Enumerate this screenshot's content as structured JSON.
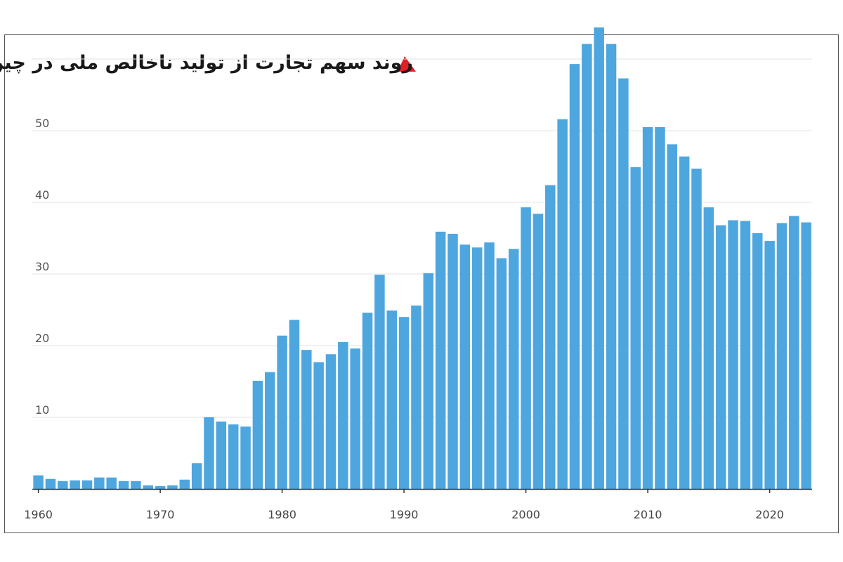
{
  "chart_data": {
    "type": "bar",
    "title": "روند سهم تجارت از تولید ناخالص ملی در چین",
    "xlabel": "",
    "ylabel": "",
    "ylim": [
      0,
      60
    ],
    "yticks": [
      10,
      20,
      30,
      40,
      50
    ],
    "xticks": [
      1960,
      1970,
      1980,
      1990,
      2000,
      2010,
      2020
    ],
    "grid": true,
    "bar_color": "#4ea6df",
    "marker_color": "#e31e24",
    "categories": [
      1960,
      1961,
      1962,
      1963,
      1964,
      1965,
      1966,
      1967,
      1968,
      1969,
      1970,
      1971,
      1972,
      1973,
      1974,
      1975,
      1976,
      1977,
      1978,
      1979,
      1980,
      1981,
      1982,
      1983,
      1984,
      1985,
      1986,
      1987,
      1988,
      1989,
      1990,
      1991,
      1992,
      1993,
      1994,
      1995,
      1996,
      1997,
      1998,
      1999,
      2000,
      2001,
      2002,
      2003,
      2004,
      2005,
      2006,
      2007,
      2008,
      2009,
      2010,
      2011,
      2012,
      2013,
      2014,
      2015,
      2016,
      2017,
      2018,
      2019,
      2020,
      2021,
      2022,
      2023
    ],
    "values": [
      1.9,
      1.4,
      1.1,
      1.2,
      1.2,
      1.6,
      1.6,
      1.1,
      1.1,
      0.5,
      0.4,
      0.5,
      1.3,
      3.6,
      10.0,
      9.4,
      9.0,
      8.7,
      15.1,
      16.3,
      21.4,
      23.6,
      19.4,
      17.7,
      18.8,
      20.5,
      19.6,
      24.6,
      29.9,
      24.9,
      24.0,
      25.6,
      30.1,
      35.9,
      35.6,
      34.1,
      33.7,
      34.4,
      32.2,
      33.5,
      39.3,
      38.4,
      42.4,
      51.6,
      59.3,
      62.1,
      64.4,
      62.1,
      57.3,
      44.9,
      50.5,
      50.5,
      48.1,
      46.4,
      44.7,
      39.3,
      36.8,
      37.5,
      37.4,
      35.7,
      34.6,
      37.1,
      38.1,
      37.2
    ]
  }
}
